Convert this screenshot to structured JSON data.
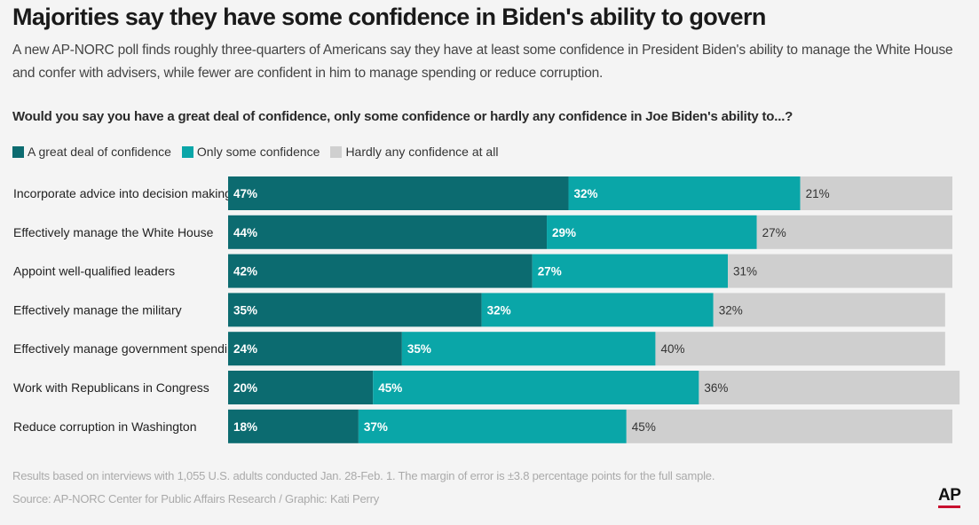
{
  "title": "Majorities say they have some confidence in Biden's ability to govern",
  "subtitle": "A new AP-NORC poll finds roughly three-quarters of Americans say they have at least some confidence in President Biden's ability to manage the White House and confer with advisers, while fewer are confident in him to manage spending or reduce corruption.",
  "question": "Would you say you have a great deal of confidence, only some confidence or hardly any confidence in Joe Biden's ability to...?",
  "note": "Results based on interviews with 1,055 U.S. adults conducted Jan. 28-Feb. 1. The margin of error is ±3.8 percentage points for the full sample.",
  "source": "Source: AP-NORC Center for Public Affairs Research / Graphic: Kati Perry",
  "logo": "AP",
  "colors": {
    "great_deal": "#0c6b70",
    "only_some": "#0aa6a8",
    "hardly_any": "#cfcfcf",
    "accent_red": "#c8102e"
  },
  "chart_data": {
    "type": "bar",
    "orientation": "horizontal",
    "stacked": true,
    "xlim": [
      0,
      100
    ],
    "grid": false,
    "legend_position": "top-left",
    "categories": [
      "Incorporate advice into decision making",
      "Effectively manage the White House",
      "Appoint well-qualified leaders",
      "Effectively manage the military",
      "Effectively manage government spending",
      "Work with Republicans in Congress",
      "Reduce corruption in Washington"
    ],
    "series": [
      {
        "name": "A great deal of confidence",
        "color": "#0c6b70",
        "label_color": "#ffffff",
        "values": [
          47,
          44,
          42,
          35,
          24,
          20,
          18
        ]
      },
      {
        "name": "Only some confidence",
        "color": "#0aa6a8",
        "label_color": "#ffffff",
        "values": [
          32,
          29,
          27,
          32,
          35,
          45,
          37
        ]
      },
      {
        "name": "Hardly any confidence at all",
        "color": "#cfcfcf",
        "label_color": "#333333",
        "values": [
          21,
          27,
          31,
          32,
          40,
          36,
          45
        ]
      }
    ]
  }
}
